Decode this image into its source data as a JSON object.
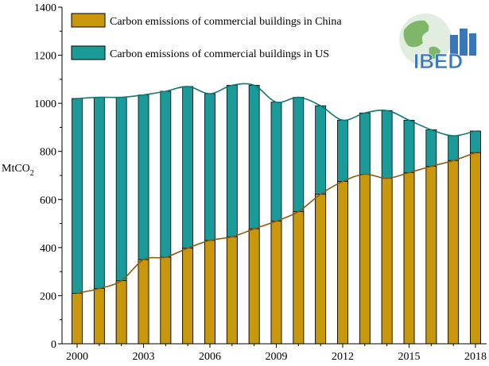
{
  "chart_data": {
    "type": "bar",
    "categories": [
      "2000",
      "2001",
      "2002",
      "2003",
      "2004",
      "2005",
      "2006",
      "2007",
      "2008",
      "2009",
      "2010",
      "2011",
      "2012",
      "2013",
      "2014",
      "2015",
      "2016",
      "2017",
      "2018"
    ],
    "x_tick_labels": [
      "2000",
      "2003",
      "2006",
      "2009",
      "2012",
      "2015",
      "2018"
    ],
    "series": [
      {
        "name": "Carbon emissions of commercial buildings in US",
        "values": [
          1020,
          1025,
          1025,
          1035,
          1050,
          1070,
          1040,
          1075,
          1075,
          1005,
          1025,
          990,
          930,
          960,
          970,
          930,
          890,
          865,
          885
        ]
      },
      {
        "name": "Carbon emissions of commercial buildings in China",
        "values": [
          210,
          230,
          262,
          350,
          360,
          398,
          430,
          445,
          478,
          510,
          550,
          622,
          675,
          705,
          688,
          712,
          738,
          762,
          795
        ]
      }
    ],
    "ylabel": "MtCO",
    "ylabel_subscript": "2",
    "ylim": [
      0,
      1400
    ],
    "yticks": [
      0,
      200,
      400,
      600,
      800,
      1000,
      1200,
      1400
    ],
    "legend_position": "top-left",
    "grid": false,
    "colors": {
      "us": "#1a9b99",
      "china": "#c8970b",
      "us_line": "#147775",
      "china_line": "#8a5a10"
    }
  },
  "logo": {
    "text": "IBED",
    "color": "#3a76b8",
    "icon": "globe-buildings-icon"
  }
}
